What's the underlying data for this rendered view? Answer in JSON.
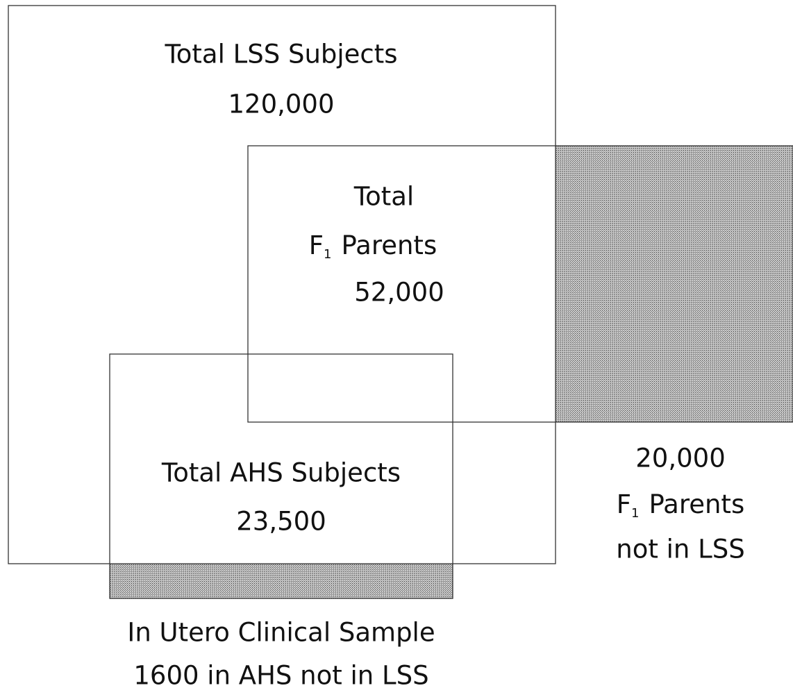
{
  "nodes": [
    {
      "id": "lss",
      "lines": [
        "Total LSS Subjects",
        "120,000"
      ]
    },
    {
      "id": "f1",
      "lines": [
        "Total",
        {
          "main": "F",
          "sub": "1",
          "rest": "Parents"
        },
        "52,000"
      ]
    },
    {
      "id": "ahs",
      "lines": [
        "Total AHS Subjects",
        "23,500"
      ]
    },
    {
      "id": "f1-not-lss",
      "lines": [
        "20,000",
        {
          "main": "F",
          "sub": "1",
          "rest": "Parents"
        },
        "not in LSS"
      ]
    },
    {
      "id": "in-utero",
      "lines": [
        "In Utero Clinical Sample",
        "1600 in AHS not in LSS"
      ]
    }
  ]
}
